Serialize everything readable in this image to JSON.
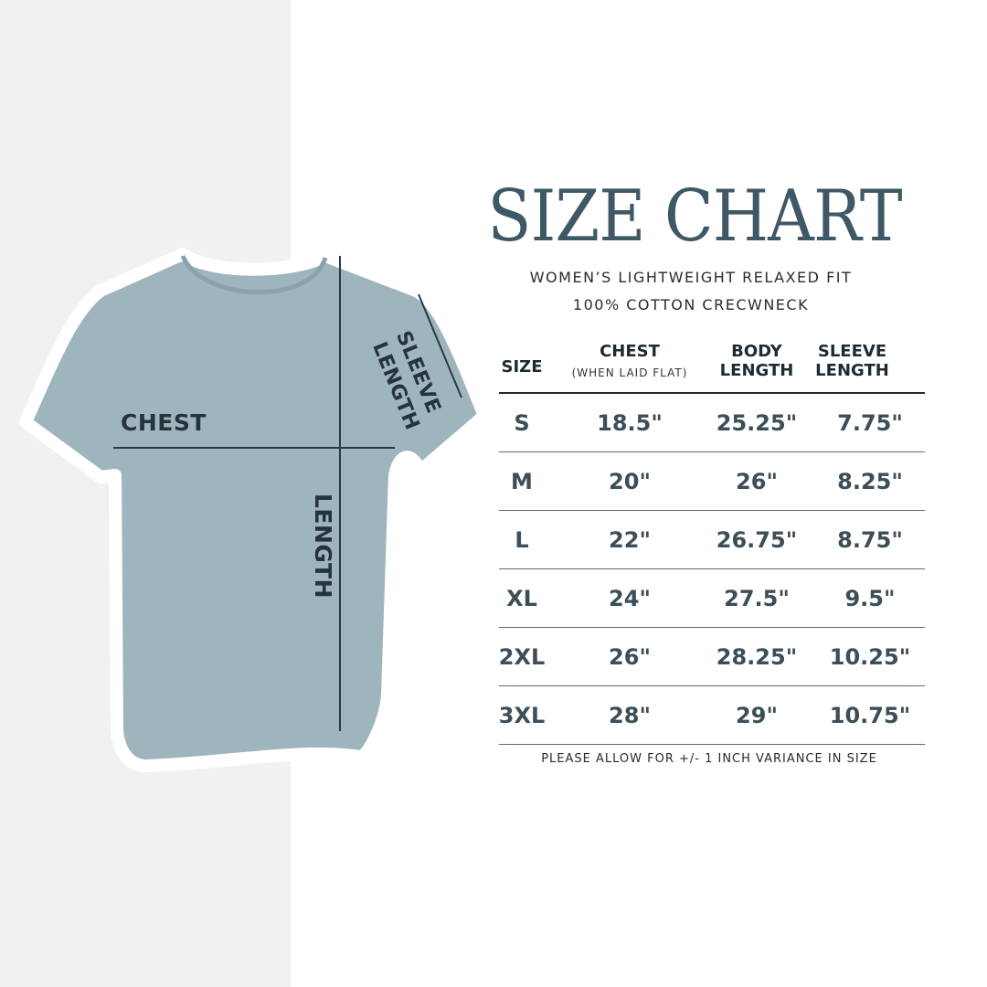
{
  "title": "SIZE CHART",
  "subtitle_line1": "WOMEN’S LIGHTWEIGHT RELAXED FIT",
  "subtitle_line2": "100% COTTON CRECWNECK",
  "diagram": {
    "chest_label": "CHEST",
    "length_label": "LENGTH",
    "sleeve_label_1": "SLEEVE",
    "sleeve_label_2": "LENGTH",
    "shirt_color": "#9fb5bd"
  },
  "table": {
    "headers": {
      "size": "SIZE",
      "chest": "CHEST",
      "chest_note": "(WHEN LAID FLAT)",
      "body_1": "BODY",
      "body_2": "LENGTH",
      "sleeve_1": "SLEEVE",
      "sleeve_2": "LENGTH"
    },
    "rows": [
      {
        "size": "S",
        "chest": "18.5\"",
        "body": "25.25\"",
        "sleeve": "7.75\""
      },
      {
        "size": "M",
        "chest": "20\"",
        "body": "26\"",
        "sleeve": "8.25\""
      },
      {
        "size": "L",
        "chest": "22\"",
        "body": "26.75\"",
        "sleeve": "8.75\""
      },
      {
        "size": "XL",
        "chest": "24\"",
        "body": "27.5\"",
        "sleeve": "9.5\""
      },
      {
        "size": "2XL",
        "chest": "26\"",
        "body": "28.25\"",
        "sleeve": "10.25\""
      },
      {
        "size": "3XL",
        "chest": "28\"",
        "body": "29\"",
        "sleeve": "10.75\""
      }
    ]
  },
  "note": "PLEASE ALLOW FOR +/- 1 INCH VARIANCE IN SIZE",
  "colors": {
    "title": "#3f5866",
    "text": "#3c4e58",
    "left_bg": "#f1f1f1"
  }
}
